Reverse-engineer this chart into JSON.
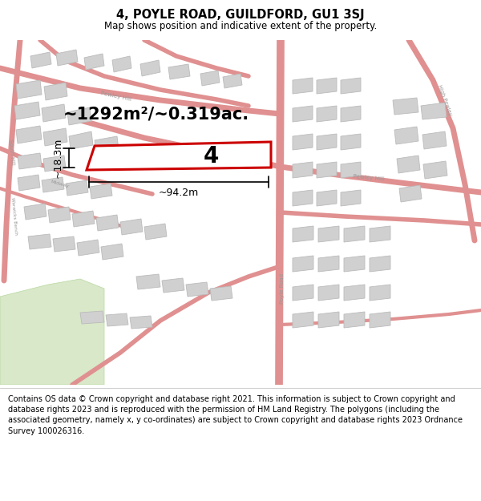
{
  "title": "4, POYLE ROAD, GUILDFORD, GU1 3SJ",
  "subtitle": "Map shows position and indicative extent of the property.",
  "footer": "Contains OS data © Crown copyright and database right 2021. This information is subject to Crown copyright and database rights 2023 and is reproduced with the permission of HM Land Registry. The polygons (including the associated geometry, namely x, y co-ordinates) are subject to Crown copyright and database rights 2023 Ordnance Survey 100026316.",
  "map_bg": "#f2f2f2",
  "road_color": "#e09090",
  "building_color": "#d0d0d0",
  "highlight_color": "#cc0000",
  "area_text": "~1292m²/~0.319ac.",
  "width_text": "~94.2m",
  "height_text": "~18.3m",
  "plot_number": "4",
  "title_fontsize": 10.5,
  "subtitle_fontsize": 8.5,
  "footer_fontsize": 7.0,
  "label_color": "#999999",
  "green_color": "#d8e8c8"
}
